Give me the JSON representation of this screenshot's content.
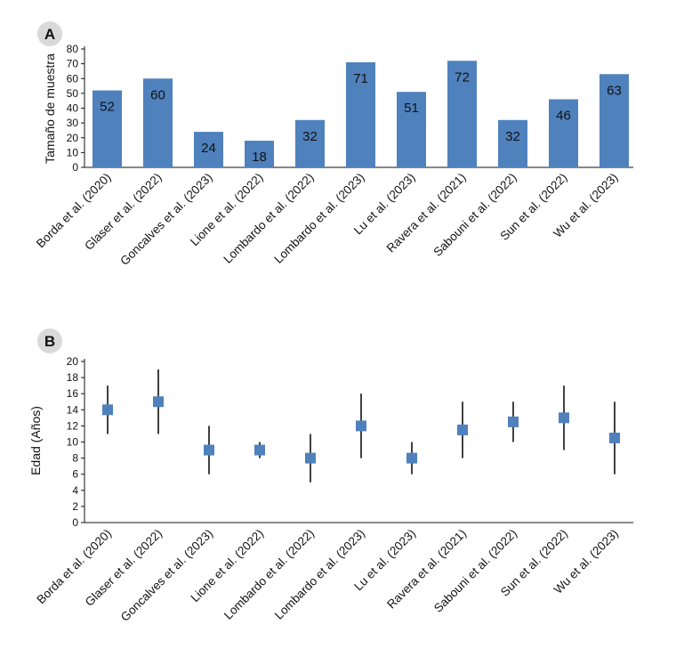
{
  "colors": {
    "bar": "#4f81bd",
    "marker": "#4f81bd",
    "axis": "#111111",
    "panel_badge": "#d9d9d9"
  },
  "chart_data": [
    {
      "panel": "A",
      "type": "bar",
      "ylabel": "Tamaño de muestra",
      "ylim": [
        0,
        80
      ],
      "yticks": [
        0,
        10,
        20,
        30,
        40,
        50,
        60,
        70,
        80
      ],
      "categories": [
        "Borda et al. (2020)",
        "Glaser et al. (2022)",
        "Goncalves et al. (2023)",
        "Lione et al. (2022)",
        "Lombardo et al. (2022)",
        "Lombardo et al. (2023)",
        "Lu et al. (2023)",
        "Ravera et al. (2021)",
        "Sabouni et al. (2022)",
        "Sun et al. (2022)",
        "Wu et al. (2023)"
      ],
      "values": [
        52,
        60,
        24,
        18,
        32,
        71,
        51,
        72,
        32,
        46,
        63
      ],
      "data_labels": true,
      "grid": false
    },
    {
      "panel": "B",
      "type": "scatter",
      "ylabel": "Edad (Años)",
      "ylim": [
        0,
        20
      ],
      "yticks": [
        0,
        2,
        4,
        6,
        8,
        10,
        12,
        14,
        16,
        18,
        20
      ],
      "categories": [
        "Borda et al. (2020)",
        "Glaser et al. (2022)",
        "Goncalves et al. (2023)",
        "Lione et al. (2022)",
        "Lombardo et al. (2022)",
        "Lombardo et al. (2023)",
        "Lu et al. (2023)",
        "Ravera et al. (2021)",
        "Sabouni et al. (2022)",
        "Sun et al. (2022)",
        "Wu et al. (2023)"
      ],
      "values": [
        14,
        15,
        9,
        9,
        8,
        12,
        8,
        11.5,
        12.5,
        13,
        10.5
      ],
      "low": [
        11,
        11,
        6,
        8,
        5,
        8,
        6,
        8,
        10,
        9,
        6
      ],
      "high": [
        17,
        19,
        12,
        10,
        11,
        16,
        10,
        15,
        15,
        17,
        15
      ],
      "grid": false
    }
  ]
}
